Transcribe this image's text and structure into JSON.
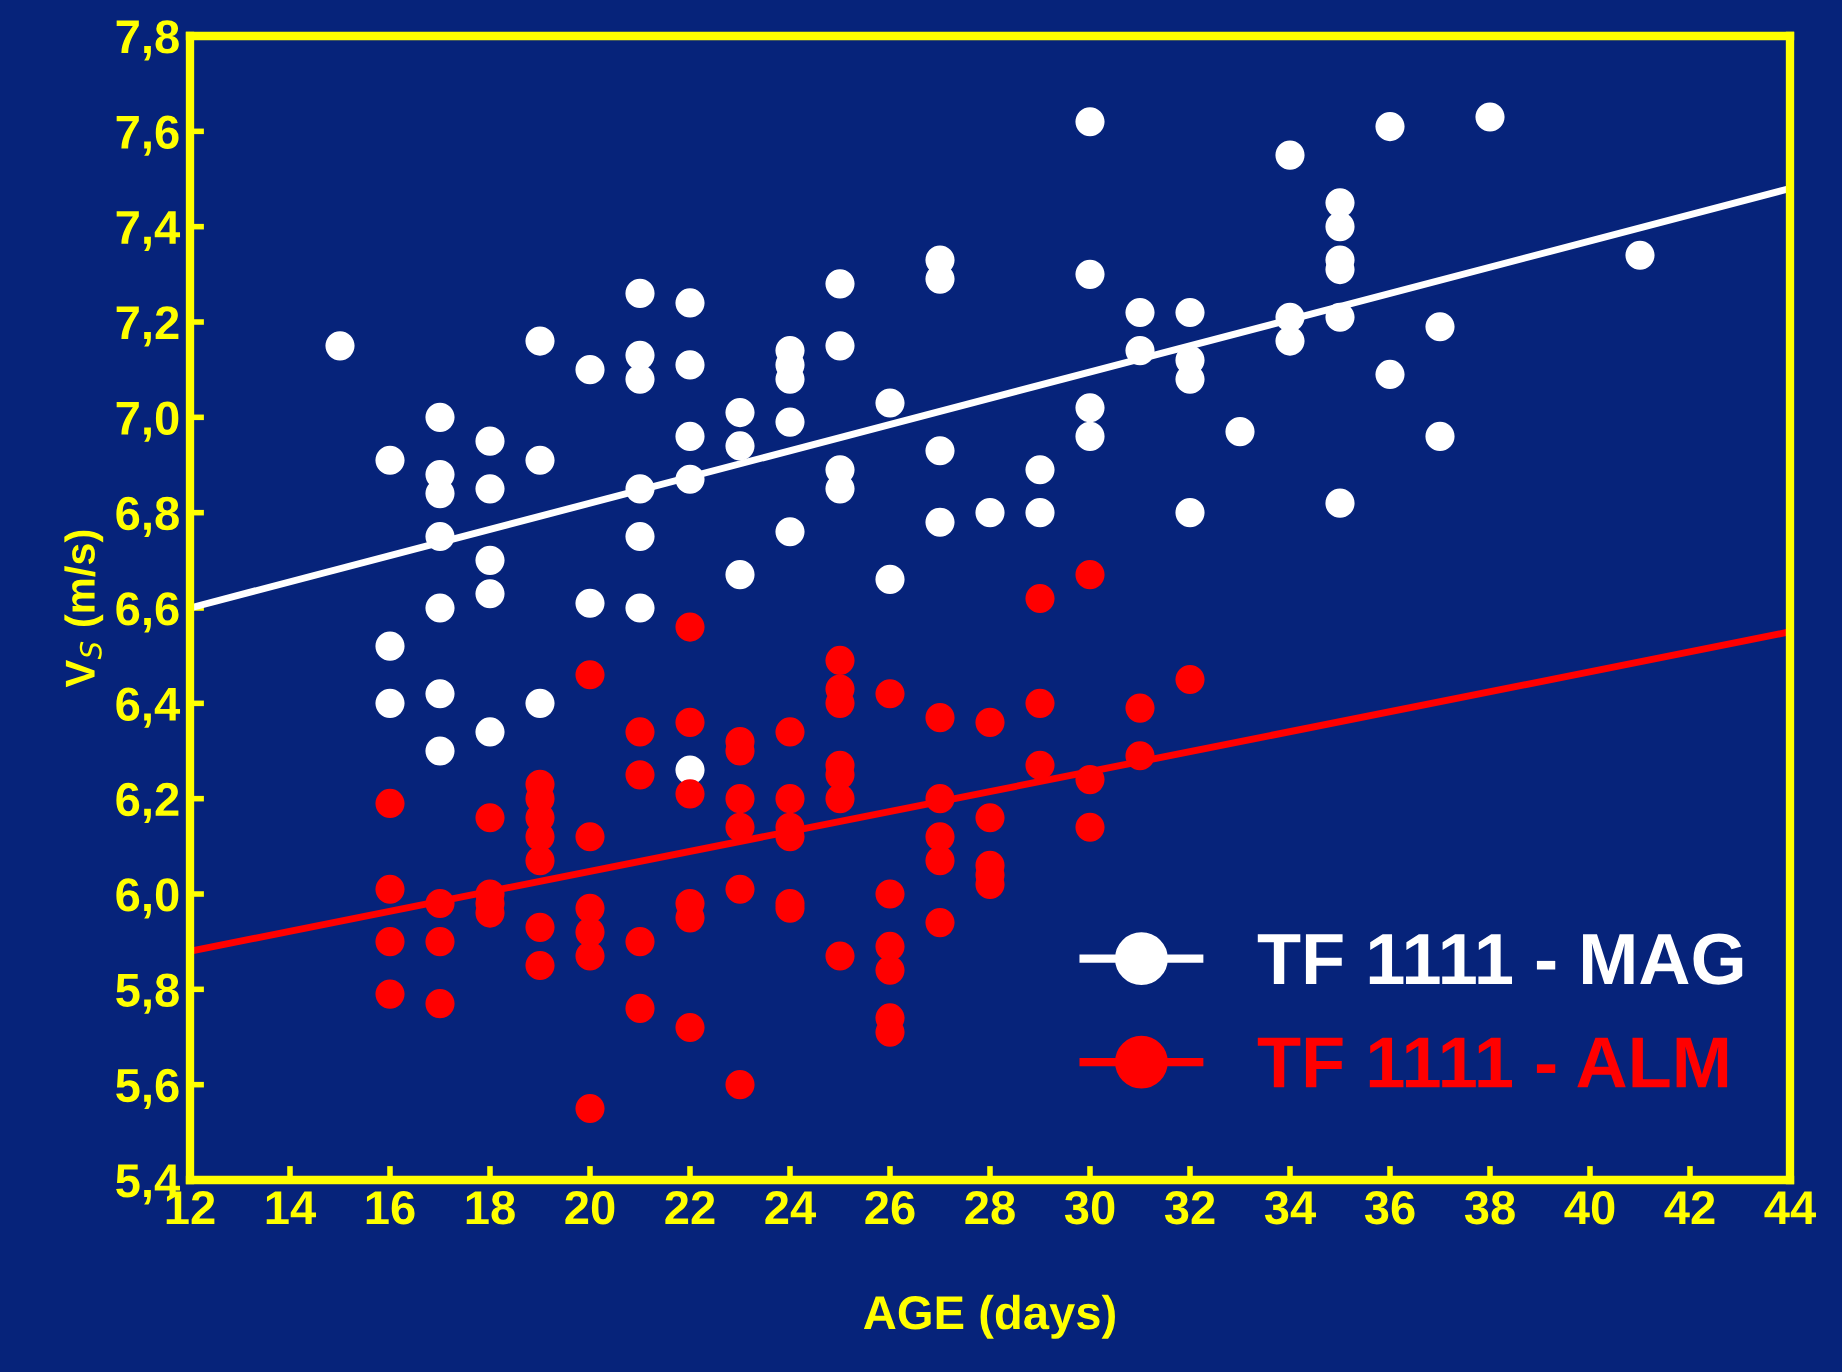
{
  "chart_data": {
    "type": "scatter",
    "xlabel": "AGE (days)",
    "ylabel": "V$_{S}$ (m/s)",
    "xlim": [
      12,
      44
    ],
    "xticks": [
      12,
      14,
      16,
      18,
      20,
      22,
      24,
      26,
      28,
      30,
      32,
      34,
      36,
      38,
      40,
      42,
      44
    ],
    "ylim": [
      5.4,
      7.8
    ],
    "yticks": [
      {
        "value": 5.4,
        "label": "5,4"
      },
      {
        "value": 5.6,
        "label": "5,6"
      },
      {
        "value": 5.8,
        "label": "5,8"
      },
      {
        "value": 6.0,
        "label": "6,0"
      },
      {
        "value": 6.2,
        "label": "6,2"
      },
      {
        "value": 6.4,
        "label": "6,4"
      },
      {
        "value": 6.6,
        "label": "6,6"
      },
      {
        "value": 6.8,
        "label": "6,8"
      },
      {
        "value": 7.0,
        "label": "7,0"
      },
      {
        "value": 7.2,
        "label": "7,2"
      },
      {
        "value": 7.4,
        "label": "7,4"
      },
      {
        "value": 7.6,
        "label": "7,6"
      },
      {
        "value": 7.8,
        "label": "7,8"
      }
    ],
    "grid": false,
    "legend": "bottom right",
    "series": [
      {
        "name": "TF 1111 - MAG",
        "marker": "circle",
        "color": "#ffffff",
        "x": [
          15,
          16,
          16,
          16,
          17,
          17,
          17,
          17,
          17,
          17,
          17,
          18,
          18,
          18,
          18,
          18,
          19,
          19,
          19,
          20,
          20,
          21,
          21,
          21,
          21,
          21,
          21,
          22,
          22,
          22,
          22,
          22,
          23,
          23,
          23,
          24,
          24,
          24,
          24,
          24,
          25,
          25,
          25,
          25,
          26,
          26,
          27,
          27,
          27,
          27,
          28,
          29,
          29,
          30,
          30,
          30,
          30,
          31,
          31,
          32,
          32,
          32,
          32,
          33,
          34,
          34,
          34,
          35,
          35,
          35,
          35,
          35,
          35,
          36,
          36,
          37,
          37,
          38,
          41
        ],
        "values": [
          7.15,
          6.91,
          6.52,
          6.4,
          7.0,
          6.88,
          6.84,
          6.75,
          6.6,
          6.42,
          6.3,
          6.95,
          6.85,
          6.7,
          6.63,
          6.34,
          7.16,
          6.91,
          6.4,
          7.1,
          6.61,
          7.26,
          7.13,
          7.08,
          6.85,
          6.75,
          6.6,
          7.24,
          7.11,
          6.96,
          6.87,
          6.26,
          7.01,
          6.94,
          6.67,
          7.14,
          7.11,
          7.08,
          6.99,
          6.76,
          7.28,
          7.15,
          6.89,
          6.85,
          7.03,
          6.66,
          7.33,
          7.29,
          6.93,
          6.78,
          6.8,
          6.89,
          6.8,
          7.62,
          7.3,
          7.02,
          6.96,
          7.22,
          7.14,
          7.22,
          7.12,
          7.08,
          6.8,
          6.97,
          7.55,
          7.21,
          7.16,
          7.45,
          7.4,
          7.33,
          7.31,
          7.21,
          6.82,
          7.61,
          7.09,
          7.19,
          6.96,
          7.63,
          7.34
        ]
      },
      {
        "name": "TF 1111 - ALM",
        "marker": "circle",
        "color": "#ff0000",
        "x": [
          16,
          16,
          16,
          16,
          17,
          17,
          17,
          18,
          18,
          18,
          18,
          19,
          19,
          19,
          19,
          19,
          19,
          19,
          20,
          20,
          20,
          20,
          20,
          20,
          21,
          21,
          21,
          21,
          22,
          22,
          22,
          22,
          22,
          22,
          23,
          23,
          23,
          23,
          23,
          23,
          24,
          24,
          24,
          24,
          24,
          24,
          25,
          25,
          25,
          25,
          25,
          25,
          25,
          26,
          26,
          26,
          26,
          26,
          26,
          27,
          27,
          27,
          27,
          27,
          28,
          28,
          28,
          28,
          28,
          29,
          29,
          29,
          30,
          30,
          30,
          31,
          31,
          32
        ],
        "values": [
          6.19,
          6.01,
          5.9,
          5.79,
          5.98,
          5.9,
          5.77,
          6.16,
          6.0,
          5.98,
          5.96,
          6.23,
          6.2,
          6.16,
          6.12,
          6.07,
          5.93,
          5.85,
          6.46,
          6.12,
          5.97,
          5.92,
          5.87,
          5.55,
          6.34,
          6.25,
          5.9,
          5.76,
          6.56,
          6.36,
          6.21,
          5.98,
          5.95,
          5.72,
          6.32,
          6.3,
          6.2,
          6.14,
          6.01,
          5.6,
          6.34,
          6.2,
          6.14,
          6.12,
          5.98,
          5.97,
          6.49,
          6.43,
          6.4,
          6.27,
          6.25,
          6.2,
          5.87,
          6.42,
          6.0,
          5.89,
          5.84,
          5.74,
          5.71,
          6.37,
          6.2,
          6.12,
          6.07,
          5.94,
          6.36,
          6.16,
          6.06,
          6.04,
          6.02,
          6.62,
          6.4,
          6.27,
          6.67,
          6.24,
          6.14,
          6.39,
          6.29,
          6.45
        ]
      },
      {
        "type": "line",
        "color": "#ffffff",
        "x": [
          12,
          44
        ],
        "values": [
          6.6,
          7.48
        ]
      },
      {
        "type": "line",
        "color": "#ff0000",
        "x": [
          12,
          44
        ],
        "values": [
          5.88,
          6.55
        ]
      }
    ]
  }
}
